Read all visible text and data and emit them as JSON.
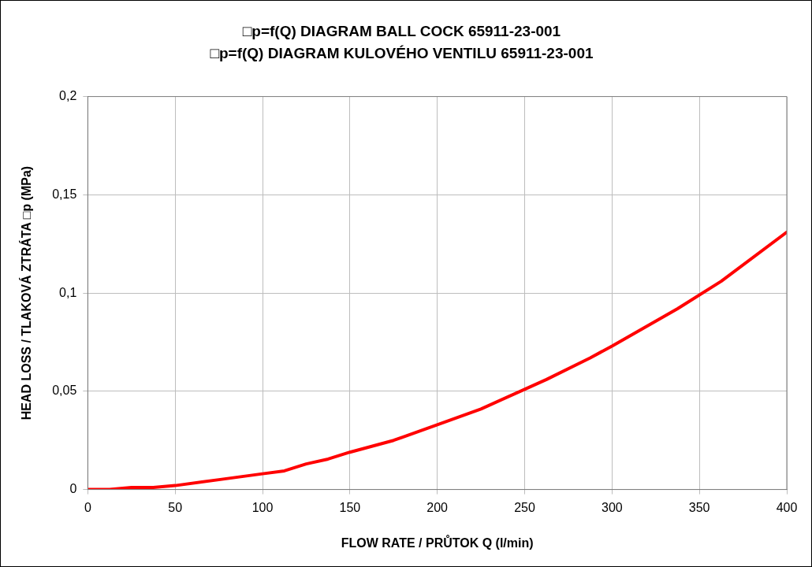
{
  "chart_data": {
    "type": "line",
    "title": "□p=f(Q) DIAGRAM BALL COCK 65911-23-001",
    "subtitle": "□p=f(Q) DIAGRAM KULOVÉHO VENTILU 65911-23-001",
    "xlabel": "FLOW RATE / PRŮTOK Q (l/min)",
    "ylabel": "HEAD LOSS / TLAKOVÁ ZTRÁTA □p (MPa)",
    "x": [
      0,
      12.5,
      25,
      37.5,
      50,
      75,
      100,
      112.5,
      125,
      137.5,
      150,
      175,
      200,
      225,
      250,
      262.5,
      287.5,
      300,
      337.5,
      362.5,
      400
    ],
    "series": [
      {
        "color": "#ff0000",
        "values": [
          0,
          0,
          0.001,
          0.001,
          0.002,
          0.005,
          0.008,
          0.0095,
          0.013,
          0.0155,
          0.019,
          0.025,
          0.033,
          0.041,
          0.051,
          0.056,
          0.067,
          0.073,
          0.092,
          0.106,
          0.131
        ]
      }
    ],
    "xlim": [
      0,
      400
    ],
    "xticks": [
      0,
      50,
      100,
      150,
      200,
      250,
      300,
      350,
      400
    ],
    "ylim": [
      0,
      0.2
    ],
    "yticks": [
      0,
      {
        "value": 0.05,
        "label": "0,05"
      },
      {
        "value": 0.1,
        "label": "0,1"
      },
      {
        "value": 0.15,
        "label": "0,15"
      },
      {
        "value": 0.2,
        "label": "0,2"
      }
    ],
    "grid": true,
    "legend": false,
    "marker": "none",
    "line_style": "solid"
  }
}
